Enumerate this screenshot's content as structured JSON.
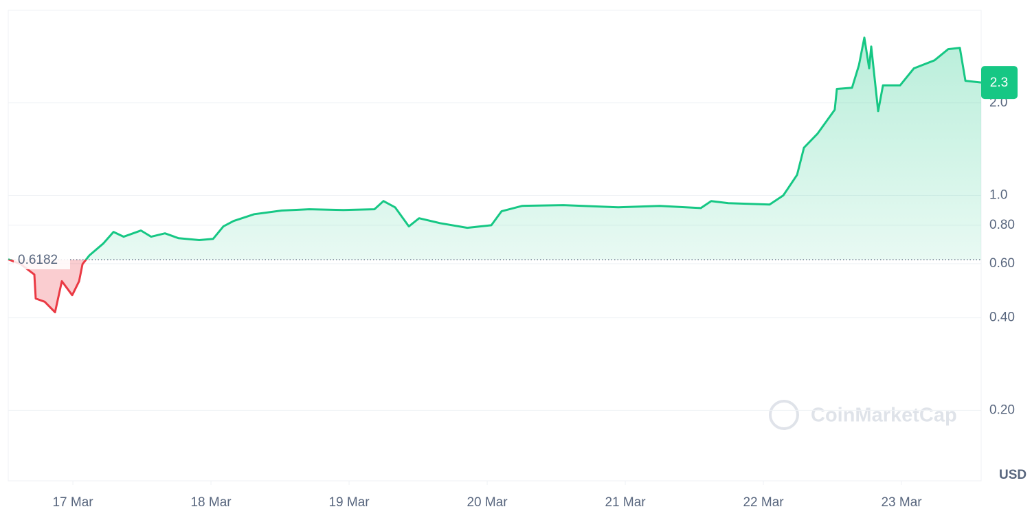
{
  "chart_data": {
    "type": "line",
    "x": [
      16.532,
      16.622,
      16.721,
      16.731,
      16.796,
      16.871,
      16.92,
      16.995,
      17.045,
      17.07,
      17.119,
      17.219,
      17.294,
      17.368,
      17.493,
      17.567,
      17.667,
      17.766,
      17.915,
      18.015,
      18.09,
      18.164,
      18.313,
      18.512,
      18.711,
      18.96,
      19.184,
      19.249,
      19.333,
      19.433,
      19.507,
      19.657,
      19.856,
      20.03,
      20.104,
      20.254,
      20.552,
      20.95,
      21.249,
      21.547,
      21.622,
      21.746,
      22.045,
      22.144,
      22.244,
      22.294,
      22.393,
      22.517,
      22.532,
      22.642,
      22.692,
      22.731,
      22.766,
      22.781,
      22.831,
      22.866,
      22.99,
      23.09,
      23.239,
      23.338,
      23.423,
      23.463,
      23.577
    ],
    "values": [
      0.62,
      0.598,
      0.553,
      0.462,
      0.451,
      0.417,
      0.526,
      0.474,
      0.526,
      0.598,
      0.638,
      0.697,
      0.761,
      0.734,
      0.769,
      0.734,
      0.753,
      0.726,
      0.716,
      0.722,
      0.793,
      0.826,
      0.869,
      0.893,
      0.902,
      0.897,
      0.902,
      0.959,
      0.915,
      0.793,
      0.843,
      0.813,
      0.785,
      0.8,
      0.888,
      0.925,
      0.93,
      0.915,
      0.925,
      0.91,
      0.959,
      0.944,
      0.934,
      1.0,
      1.167,
      1.43,
      1.59,
      1.9,
      2.22,
      2.24,
      2.65,
      3.26,
      2.59,
      3.05,
      1.88,
      2.28,
      2.28,
      2.59,
      2.75,
      2.99,
      3.02,
      2.36,
      2.33
    ],
    "up_color": "#16c784",
    "down_color": "#ea3943",
    "baseline": {
      "value": 0.6182,
      "label": "0.6182"
    },
    "last_price": {
      "value": 2.33,
      "label": "2.3"
    },
    "log_scale": true,
    "xlim": [
      16.532,
      23.577
    ],
    "xticks": [
      {
        "value": 17,
        "label": "17 Mar"
      },
      {
        "value": 18,
        "label": "18 Mar"
      },
      {
        "value": 19,
        "label": "19 Mar"
      },
      {
        "value": 20,
        "label": "20 Mar"
      },
      {
        "value": 21,
        "label": "21 Mar"
      },
      {
        "value": 22,
        "label": "22 Mar"
      },
      {
        "value": 23,
        "label": "23 Mar"
      }
    ],
    "ylim": [
      0.118,
      4
    ],
    "yticks": [
      {
        "value": 0.2,
        "label": "0.20"
      },
      {
        "value": 0.4,
        "label": "0.40"
      },
      {
        "value": 0.6,
        "label": "0.60"
      },
      {
        "value": 0.8,
        "label": "0.80"
      },
      {
        "value": 1,
        "label": "1.0"
      },
      {
        "value": 2,
        "label": "2.0"
      }
    ],
    "grid": true,
    "currency": "USD",
    "watermark": "CoinMarketCap"
  }
}
